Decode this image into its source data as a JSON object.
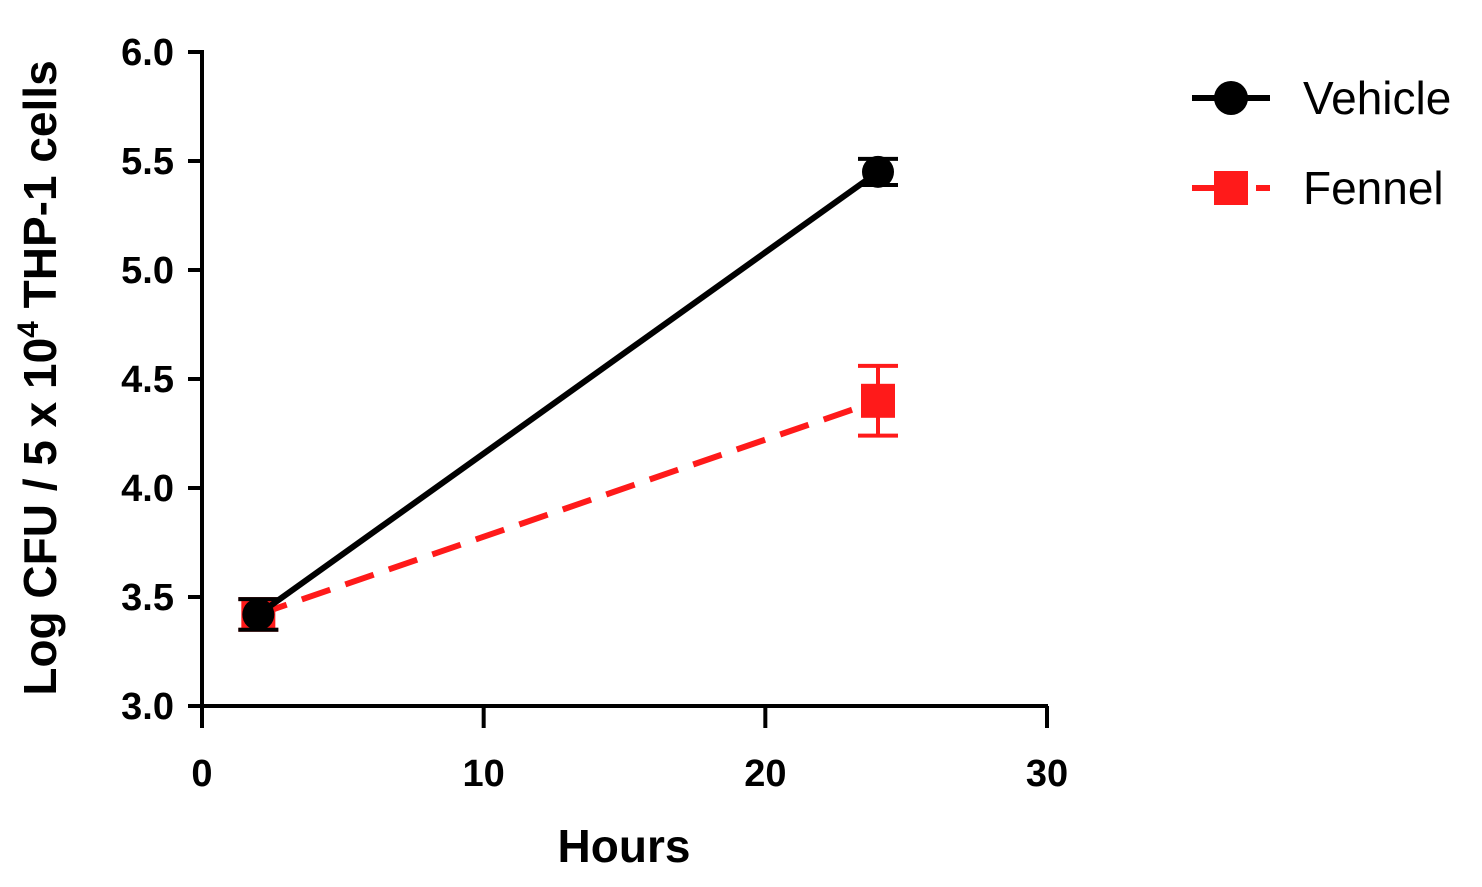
{
  "chart_data": {
    "type": "line",
    "xlabel": "Hours",
    "ylabel": {
      "prefix": "Log CFU / 5 x 10",
      "superscript": "4",
      "suffix": " THP-1 cells"
    },
    "xlim": [
      0,
      30
    ],
    "ylim": [
      3.0,
      6.0
    ],
    "x_ticks": [
      "0",
      "10",
      "20",
      "30"
    ],
    "y_ticks": [
      "3.0",
      "3.5",
      "4.0",
      "4.5",
      "5.0",
      "5.5",
      "6.0"
    ],
    "grid": false,
    "legend_position": "top-right",
    "series": [
      {
        "name": "Vehicle",
        "color": "#000000",
        "marker": "circle",
        "line_style": "solid",
        "x": [
          2,
          24
        ],
        "y": [
          3.42,
          5.45
        ],
        "error": [
          0.07,
          0.06
        ]
      },
      {
        "name": "Fennel",
        "color": "#ff1a1a",
        "marker": "square",
        "line_style": "dashed",
        "x": [
          2,
          24
        ],
        "y": [
          3.42,
          4.4
        ],
        "error": [
          0.07,
          0.16
        ]
      }
    ]
  }
}
